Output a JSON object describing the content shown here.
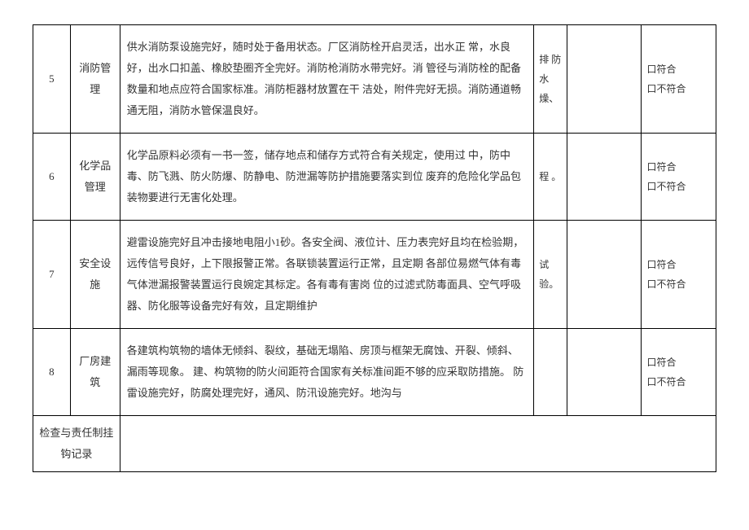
{
  "rows": [
    {
      "num": "5",
      "category": "消防管理",
      "description": "供水消防泵设施完好，随时处于备用状态。厂区消防栓开启灵活，出水正 常，水良好，出水口扣盖、橡胶垫圈齐全完好。消防枪消防水带完好。消 管径与消防栓的配备数量和地点应符合国家标准。消防柜器材放置在干 洁处，附件完好无损。消防通道畅通无阻，消防水管保温良好。",
      "note": "排 防水 燥、",
      "check_yes": "口符合",
      "check_no": "口不符合"
    },
    {
      "num": "6",
      "category": "化学品管理",
      "description": "化学品原料必须有一书一签，储存地点和储存方式符合有关规定，使用过 中，防中毒、防飞溅、防火防爆、防静电、防泄漏等防护措施要落实到位 废弃的危险化学品包装物要进行无害化处理。",
      "note": "程 。",
      "check_yes": "口符合",
      "check_no": "口不符合"
    },
    {
      "num": "7",
      "category": "安全设施",
      "description": "避雷设施完好且冲击接地电阻小1砂。各安全阀、液位计、压力表完好且均在检验期，远传信号良好，上下限报警正常。各联锁装置运行正常，且定期 各部位易燃气体有毒气体泄漏报警装置运行良婉定其标定。各有毒有害岗 位的过滤式防毒面具、空气呼吸器、防化服等设备完好有效，且定期维护",
      "note": "试验。",
      "check_yes": "口符合",
      "check_no": "口不符合"
    },
    {
      "num": "8",
      "category": "厂房建筑",
      "description": "各建筑构筑物的墙体无倾斜、裂纹，基础无塌陷、房顶与框架无腐蚀、开裂、倾斜、 漏雨等现象。 建、构筑物的防火间距符合国家有关标准间距不够的应采取防措施。  防雷设施完好，防腐处理完好，通风、防汛设施完好。地沟与",
      "note": "",
      "check_yes": "口符合",
      "check_no": "口不符合"
    }
  ],
  "footer": {
    "label": "检查与责任制挂 钩记录"
  }
}
